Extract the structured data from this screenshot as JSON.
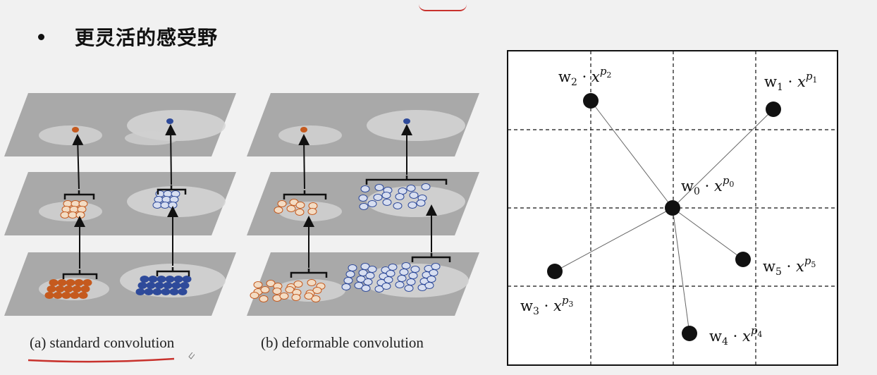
{
  "slide": {
    "bullet_symbol": "•",
    "title": "更灵活的感受野"
  },
  "figure_left": {
    "caption_a": "(a) standard convolution",
    "caption_b": "(b) deformable convolution",
    "colors": {
      "orange": "#c55a1e",
      "orange_light": "#f3dcc4",
      "blue": "#2e4a9a",
      "blue_light": "#d7def0",
      "annotation_red": "#c8322d"
    }
  },
  "figure_right": {
    "labels": {
      "w0": {
        "w": "w",
        "sub": "0",
        "x": "x",
        "p": "p",
        "psub": "0"
      },
      "w1": {
        "w": "w",
        "sub": "1",
        "x": "x",
        "p": "p",
        "psub": "1"
      },
      "w2": {
        "w": "w",
        "sub": "2",
        "x": "x",
        "p": "p",
        "psub": "2"
      },
      "w3": {
        "w": "w",
        "sub": "3",
        "x": "x",
        "p": "p",
        "psub": "3"
      },
      "w4": {
        "w": "w",
        "sub": "4",
        "x": "x",
        "p": "p",
        "psub": "4"
      },
      "w5": {
        "w": "w",
        "sub": "5",
        "x": "x",
        "p": "p",
        "psub": "5"
      }
    },
    "dot_symbol": "·"
  }
}
